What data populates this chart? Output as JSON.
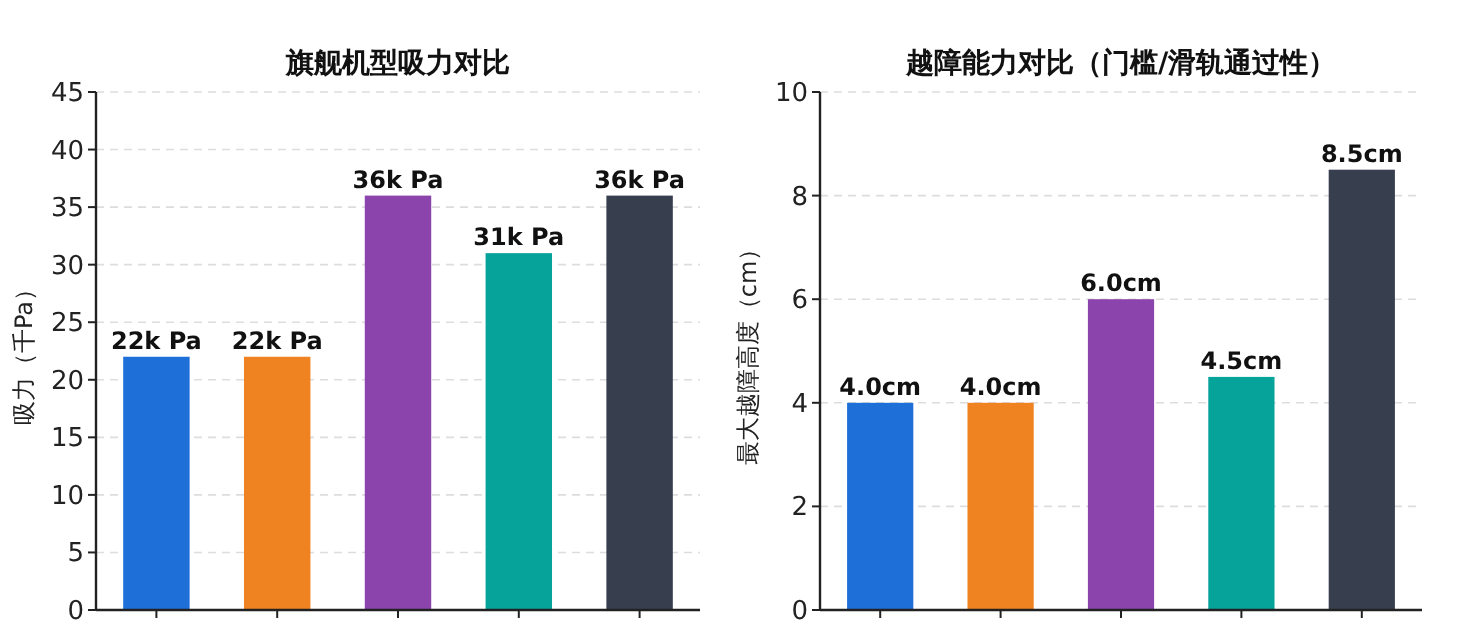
{
  "chart_data": [
    {
      "type": "bar",
      "title": "旗舰机型吸力对比",
      "ylabel": "吸力（千Pa）",
      "categories": [
        null,
        null,
        null,
        null,
        null
      ],
      "values": [
        22,
        22,
        36,
        31,
        36
      ],
      "colors": [
        "#1f6fd8",
        "#f08321",
        "#8b44ab",
        "#06a39a",
        "#373f4f"
      ],
      "value_labels": [
        "22k Pa",
        "22k Pa",
        "36k Pa",
        "31k Pa",
        "36k Pa"
      ],
      "ylim": [
        0,
        45
      ],
      "yticks": [
        0,
        5,
        10,
        15,
        20,
        25,
        30,
        35,
        40,
        45
      ],
      "grid": "y",
      "tick_labels": "y"
    },
    {
      "type": "bar",
      "title": "越障能力对比（门槛/滑轨通过性）",
      "ylabel": "最大越障高度（cm）",
      "categories": [
        null,
        null,
        null,
        null,
        null
      ],
      "values": [
        4.0,
        4.0,
        6.0,
        4.5,
        8.5
      ],
      "colors": [
        "#1f6fd8",
        "#f08321",
        "#8b44ab",
        "#06a39a",
        "#373f4f"
      ],
      "value_labels": [
        "4.0cm",
        "4.0cm",
        "6.0cm",
        "4.5cm",
        "8.5cm"
      ],
      "ylim": [
        0,
        10
      ],
      "yticks": [
        0,
        2,
        4,
        6,
        8,
        10
      ],
      "grid": "y",
      "tick_labels": "y"
    }
  ]
}
